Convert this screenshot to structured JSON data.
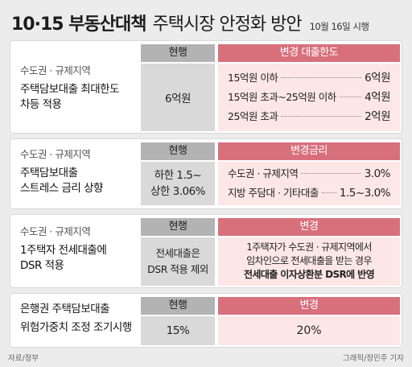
{
  "header": {
    "title_bold": "10·15 부동산대책",
    "title_rest": "주택시장 안정화 방안",
    "date": "10월 16일 시행"
  },
  "cards": [
    {
      "category": "수도권 · 규제지역",
      "desc_line1": "주택담보대출 최대한도",
      "desc_line2": "차등 적용",
      "current_header": "현행",
      "current_value": "6억원",
      "change_header": "변경 대출한도",
      "rows": [
        {
          "label": "15억원 이하",
          "value": "6억원"
        },
        {
          "label": "15억원 초과~25억원 이하",
          "value": "4억원"
        },
        {
          "label": "25억원 초과",
          "value": "2억원"
        }
      ]
    },
    {
      "category": "수도권 · 규제지역",
      "desc_line1": "주택담보대출",
      "desc_line2": "스트레스 금리 상향",
      "current_header": "현행",
      "current_line1": "하한 1.5~",
      "current_line2": "상한 3.06%",
      "change_header": "변경금리",
      "rows": [
        {
          "label": "수도권 · 규제지역",
          "value": "3.0%"
        },
        {
          "label": "지방 주담대 · 기타대출",
          "value": "1.5~3.0%"
        }
      ]
    },
    {
      "category": "수도권 · 규제지역",
      "desc_line1": "1주택자 전세대출에",
      "desc_line2": "DSR 적용",
      "current_header": "현행",
      "current_line1": "전세대출은",
      "current_line2": "DSR 적용 제외",
      "change_header": "변경",
      "change_line1": "1주택자가 수도권 · 규제지역에서",
      "change_line2": "임차인으로 전세대출을 받는 경우",
      "change_line3": "전세대출 이자상환분 DSR에 반영"
    },
    {
      "desc_line1": "은행권 주택담보대출",
      "desc_line2": "위험가중치 조정 조기시행",
      "current_header": "현행",
      "current_value": "15%",
      "change_header": "변경",
      "change_value": "20%"
    }
  ],
  "footer": {
    "source": "자료/정부",
    "credit": "그래픽/정민주 기자"
  },
  "colors": {
    "current_header_bg": "#b3b3b3",
    "current_body_bg": "#d9d9d9",
    "change_header_bg": "#d8707c",
    "change_body_bg": "#fce6e6"
  }
}
